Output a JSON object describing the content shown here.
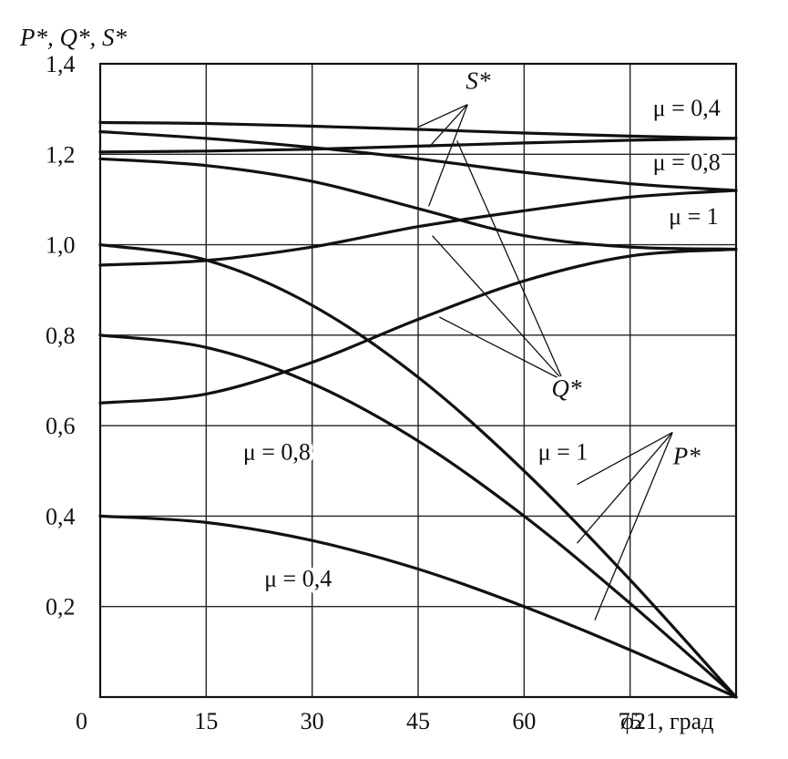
{
  "chart_data": {
    "type": "line",
    "ylabel": "P*, Q*, S*",
    "xlabel": "φ21, град",
    "xlim": [
      0,
      90
    ],
    "ylim": [
      0,
      1.4
    ],
    "x_ticks": [
      0,
      15,
      30,
      45,
      60,
      75
    ],
    "x_tick_labels": [
      "0",
      "15",
      "30",
      "45",
      "60",
      "75"
    ],
    "y_ticks": [
      0.2,
      0.4,
      0.6,
      0.8,
      1.0,
      1.2,
      1.4
    ],
    "y_tick_labels": [
      "0,2",
      "0,4",
      "0,6",
      "0,8",
      "1,0",
      "1,2",
      "1,4"
    ],
    "grid": true,
    "series": [
      {
        "name": "S* μ = 0,4",
        "x": [
          0,
          15,
          30,
          45,
          60,
          75,
          90
        ],
        "values": [
          1.27,
          1.268,
          1.262,
          1.255,
          1.247,
          1.24,
          1.235
        ]
      },
      {
        "name": "S* μ = 0,8",
        "x": [
          0,
          15,
          30,
          45,
          60,
          75,
          90
        ],
        "values": [
          1.25,
          1.235,
          1.215,
          1.19,
          1.16,
          1.135,
          1.12
        ]
      },
      {
        "name": "S* μ = 1",
        "x": [
          0,
          15,
          30,
          45,
          60,
          75,
          90
        ],
        "values": [
          1.19,
          1.175,
          1.14,
          1.08,
          1.02,
          0.995,
          0.99
        ]
      },
      {
        "name": "Q* μ = 0,4",
        "x": [
          0,
          15,
          30,
          45,
          60,
          75,
          90
        ],
        "values": [
          1.205,
          1.207,
          1.211,
          1.218,
          1.225,
          1.231,
          1.235
        ]
      },
      {
        "name": "Q* μ = 0,8",
        "x": [
          0,
          15,
          30,
          45,
          60,
          75,
          90
        ],
        "values": [
          0.955,
          0.965,
          0.995,
          1.04,
          1.075,
          1.105,
          1.12
        ]
      },
      {
        "name": "Q* μ = 1",
        "x": [
          0,
          15,
          30,
          45,
          60,
          75,
          90
        ],
        "values": [
          0.65,
          0.67,
          0.74,
          0.835,
          0.92,
          0.975,
          0.99
        ]
      },
      {
        "name": "P* μ = 1",
        "x": [
          0,
          15,
          30,
          45,
          60,
          75,
          90
        ],
        "values": [
          1.0,
          0.966,
          0.866,
          0.707,
          0.5,
          0.259,
          0.0
        ]
      },
      {
        "name": "P* μ = 0,8",
        "x": [
          0,
          15,
          30,
          45,
          60,
          75,
          90
        ],
        "values": [
          0.8,
          0.773,
          0.693,
          0.566,
          0.4,
          0.207,
          0.0
        ]
      },
      {
        "name": "P* μ = 0,4",
        "x": [
          0,
          15,
          30,
          45,
          60,
          75,
          90
        ],
        "values": [
          0.4,
          0.386,
          0.346,
          0.283,
          0.2,
          0.104,
          0.0
        ]
      }
    ],
    "annotations": [
      {
        "text": "S*",
        "kind": "family",
        "x": 53.5,
        "y": 1.345
      },
      {
        "text": "Q*",
        "kind": "family",
        "x": 66,
        "y": 0.665
      },
      {
        "text": "P*",
        "kind": "family",
        "x": 83,
        "y": 0.515
      },
      {
        "text": "μ = 0,4",
        "x": 83,
        "y": 1.285
      },
      {
        "text": "μ = 0,8",
        "x": 83,
        "y": 1.165
      },
      {
        "text": "μ = 1",
        "x": 84,
        "y": 1.045
      },
      {
        "text": "μ = 0,8",
        "x": 25,
        "y": 0.525
      },
      {
        "text": "μ = 1",
        "x": 65.5,
        "y": 0.525
      },
      {
        "text": "μ = 0,4",
        "x": 28,
        "y": 0.245
      }
    ]
  }
}
